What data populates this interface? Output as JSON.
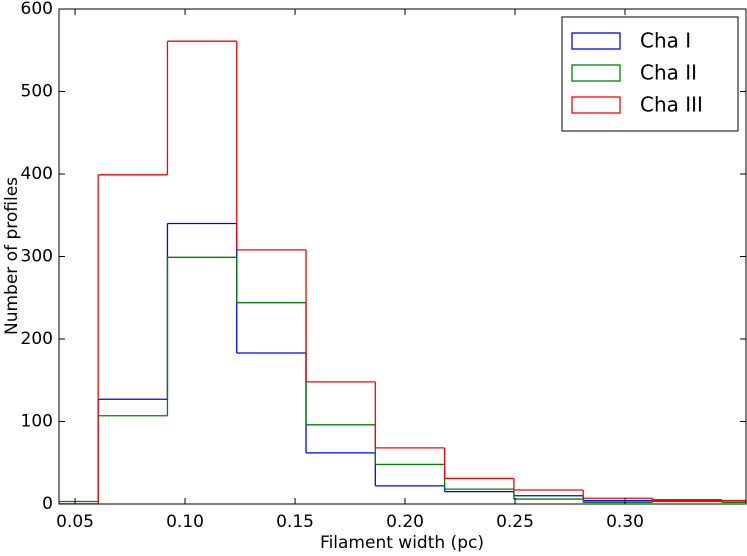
{
  "chart_data": {
    "type": "histogram",
    "xlabel": "Filament width (pc)",
    "ylabel": "Number of profiles",
    "bins": [
      0.029,
      0.0605,
      0.092,
      0.1235,
      0.155,
      0.1865,
      0.218,
      0.2495,
      0.281,
      0.3125,
      0.344,
      0.3755
    ],
    "series": [
      {
        "name": "Cha I",
        "color": "#0000ff",
        "values": [
          0,
          127,
          340,
          183,
          62,
          22,
          15,
          10,
          4,
          5,
          4
        ]
      },
      {
        "name": "Cha II",
        "color": "#008000",
        "values": [
          3,
          107,
          299,
          244,
          96,
          48,
          18,
          6,
          2,
          3,
          2
        ]
      },
      {
        "name": "Cha III",
        "color": "#ff0000",
        "values": [
          0,
          399,
          561,
          308,
          148,
          68,
          31,
          17,
          7,
          4,
          4
        ]
      }
    ],
    "xlim": [
      0.0427,
      0.355
    ],
    "ylim": [
      0,
      600
    ],
    "xticks": [
      0.05,
      {
        "value": 0.1,
        "label": "0.10"
      },
      0.15,
      {
        "value": 0.2,
        "label": "0.20"
      },
      0.25,
      {
        "value": 0.3,
        "label": "0.30"
      }
    ],
    "yticks": [
      0,
      100,
      200,
      300,
      400,
      500,
      600
    ],
    "legend": "upper right"
  }
}
